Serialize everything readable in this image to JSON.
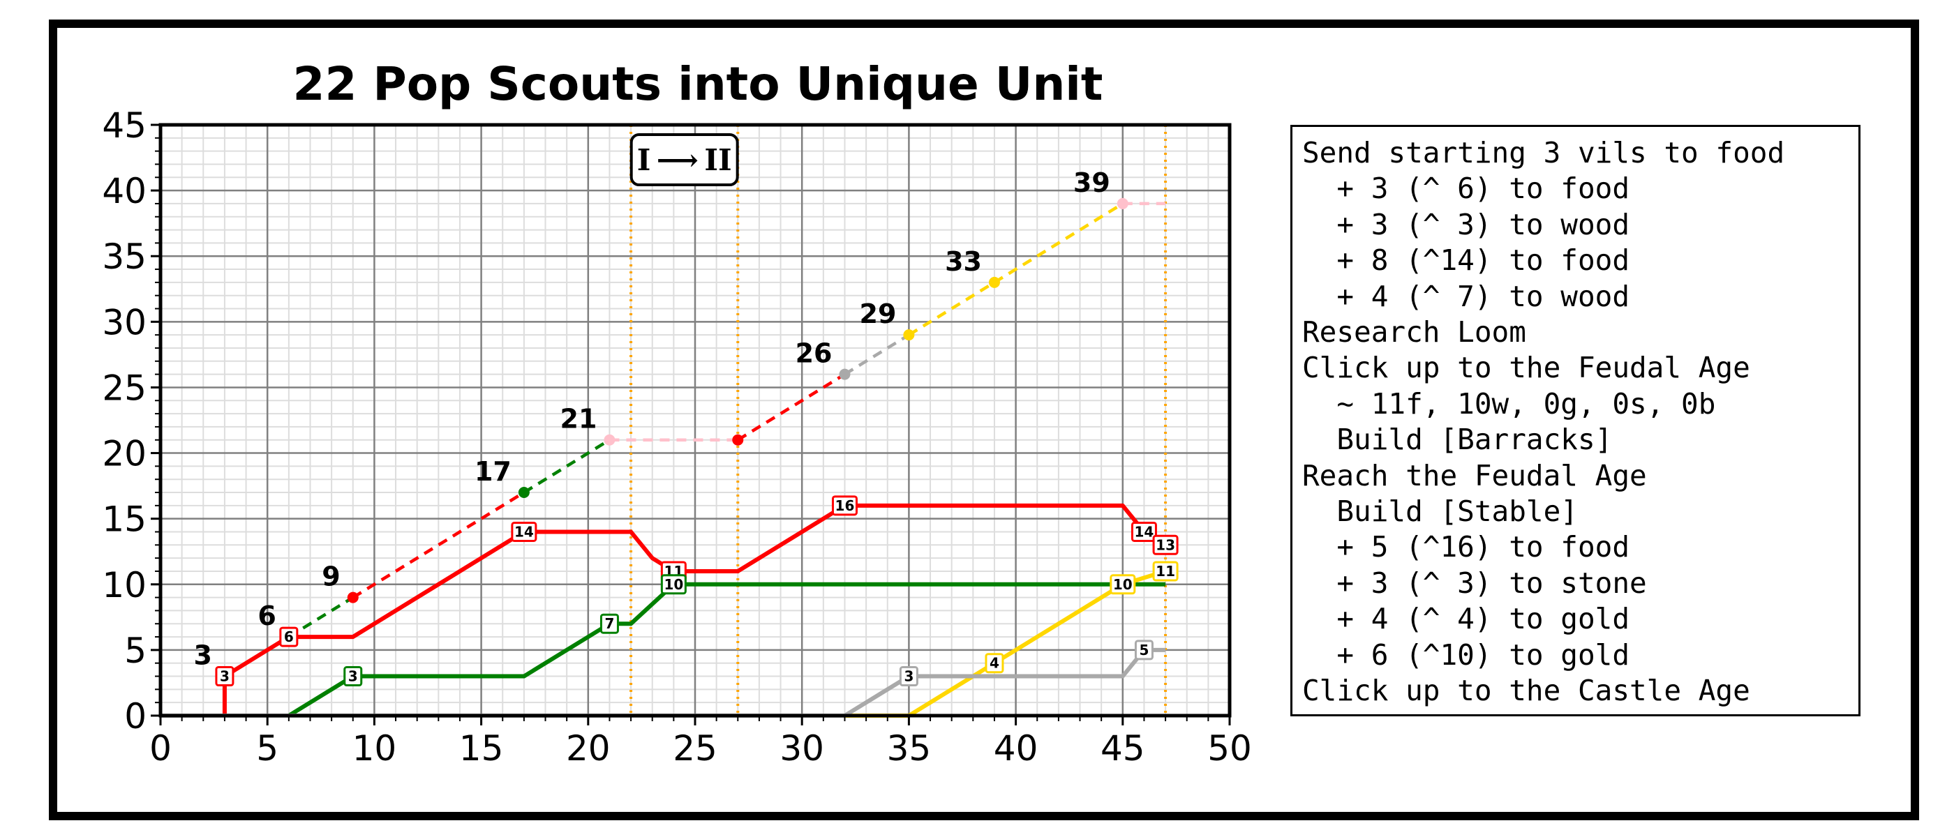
{
  "chart_data": {
    "type": "line",
    "title": "22 Pop Scouts into Unique Unit",
    "xlabel": "",
    "ylabel": "",
    "xlim": [
      0,
      50
    ],
    "ylim": [
      0,
      45
    ],
    "xticks": [
      0,
      5,
      10,
      15,
      20,
      25,
      30,
      35,
      40,
      45,
      50
    ],
    "yticks": [
      0,
      5,
      10,
      15,
      20,
      25,
      30,
      35,
      40,
      45
    ],
    "grid": true,
    "age_up_markers": [
      22,
      27,
      47
    ],
    "age_label": "I ⟶ II",
    "series": [
      {
        "color": "#ff0000",
        "points": [
          [
            0,
            0
          ],
          [
            3,
            0
          ],
          [
            3,
            3
          ],
          [
            6,
            6
          ],
          [
            9,
            6
          ],
          [
            17,
            14
          ],
          [
            22,
            14
          ],
          [
            23,
            12
          ],
          [
            24,
            11
          ],
          [
            27,
            11
          ],
          [
            32,
            16
          ],
          [
            45,
            16
          ],
          [
            46,
            14
          ],
          [
            47,
            13
          ]
        ],
        "labels": [
          {
            "x": 3,
            "y": 3,
            "text": "3"
          },
          {
            "x": 6,
            "y": 6,
            "text": "6"
          },
          {
            "x": 17,
            "y": 14,
            "text": "14"
          },
          {
            "x": 24,
            "y": 11,
            "text": "11"
          },
          {
            "x": 32,
            "y": 16,
            "text": "16"
          },
          {
            "x": 46,
            "y": 14,
            "text": "14"
          },
          {
            "x": 47,
            "y": 13,
            "text": "13"
          }
        ]
      },
      {
        "color": "#008000",
        "points": [
          [
            0,
            0
          ],
          [
            6,
            0
          ],
          [
            9,
            3
          ],
          [
            17,
            3
          ],
          [
            21,
            7
          ],
          [
            22,
            7
          ],
          [
            24,
            10
          ],
          [
            47,
            10
          ]
        ],
        "labels": [
          {
            "x": 9,
            "y": 3,
            "text": "3"
          },
          {
            "x": 21,
            "y": 7,
            "text": "7"
          },
          {
            "x": 24,
            "y": 10,
            "text": "10"
          }
        ]
      },
      {
        "color": "#ffd700",
        "points": [
          [
            0,
            0
          ],
          [
            35,
            0
          ],
          [
            45,
            10
          ],
          [
            47,
            11
          ]
        ],
        "labels": [
          {
            "x": 39,
            "y": 4,
            "text": "4"
          },
          {
            "x": 45,
            "y": 10,
            "text": "10"
          },
          {
            "x": 47,
            "y": 11,
            "text": "11"
          }
        ]
      },
      {
        "color": "#a9a9a9",
        "points": [
          [
            0,
            0
          ],
          [
            32,
            0
          ],
          [
            35,
            3
          ],
          [
            45,
            3
          ],
          [
            46,
            5
          ],
          [
            47,
            5
          ]
        ],
        "labels": [
          {
            "x": 35,
            "y": 3,
            "text": "3"
          },
          {
            "x": 46,
            "y": 5,
            "text": "5"
          }
        ]
      }
    ],
    "population": {
      "segments": [
        {
          "from": [
            6,
            6
          ],
          "to": [
            9,
            9
          ],
          "color": "#008000"
        },
        {
          "from": [
            9,
            9
          ],
          "to": [
            17,
            17
          ],
          "color": "#ff0000"
        },
        {
          "from": [
            17,
            17
          ],
          "to": [
            21,
            21
          ],
          "color": "#008000"
        },
        {
          "from": [
            21,
            21
          ],
          "to": [
            27,
            21
          ],
          "color": "#ffc0cb"
        },
        {
          "from": [
            27,
            21
          ],
          "to": [
            32,
            26
          ],
          "color": "#ff0000"
        },
        {
          "from": [
            32,
            26
          ],
          "to": [
            35,
            29
          ],
          "color": "#a9a9a9"
        },
        {
          "from": [
            35,
            29
          ],
          "to": [
            39,
            33
          ],
          "color": "#ffd700"
        },
        {
          "from": [
            39,
            33
          ],
          "to": [
            45,
            39
          ],
          "color": "#ffd700"
        },
        {
          "from": [
            45,
            39
          ],
          "to": [
            47,
            39
          ],
          "color": "#ffc0cb"
        }
      ],
      "points": [
        {
          "x": 9,
          "y": 9,
          "color": "#ff0000"
        },
        {
          "x": 17,
          "y": 17,
          "color": "#008000"
        },
        {
          "x": 21,
          "y": 21,
          "color": "#ffc0cb"
        },
        {
          "x": 27,
          "y": 21,
          "color": "#ff0000"
        },
        {
          "x": 32,
          "y": 26,
          "color": "#a9a9a9"
        },
        {
          "x": 35,
          "y": 29,
          "color": "#ffd700"
        },
        {
          "x": 39,
          "y": 33,
          "color": "#ffd700"
        },
        {
          "x": 45,
          "y": 39,
          "color": "#ffc0cb"
        }
      ],
      "labels": [
        {
          "x": 3,
          "y": 3,
          "text": "3"
        },
        {
          "x": 6,
          "y": 6,
          "text": "6"
        },
        {
          "x": 9,
          "y": 9,
          "text": "9"
        },
        {
          "x": 17,
          "y": 17,
          "text": "17"
        },
        {
          "x": 21,
          "y": 21,
          "text": "21"
        },
        {
          "x": 32,
          "y": 26,
          "text": "26"
        },
        {
          "x": 35,
          "y": 29,
          "text": "29"
        },
        {
          "x": 39,
          "y": 33,
          "text": "33"
        },
        {
          "x": 45,
          "y": 39,
          "text": "39"
        }
      ]
    }
  },
  "notes": {
    "lines": [
      "Send starting 3 vils to food",
      "  + 3 (^ 6) to food",
      "  + 3 (^ 3) to wood",
      "  + 8 (^14) to food",
      "  + 4 (^ 7) to wood",
      "Research Loom",
      "Click up to the Feudal Age",
      "  ~ 11f, 10w, 0g, 0s, 0b",
      "  Build [Barracks]",
      "Reach the Feudal Age",
      "  Build [Stable]",
      "  + 5 (^16) to food",
      "  + 3 (^ 3) to stone",
      "  + 4 (^ 4) to gold",
      "  + 6 (^10) to gold",
      "Click up to the Castle Age"
    ]
  }
}
